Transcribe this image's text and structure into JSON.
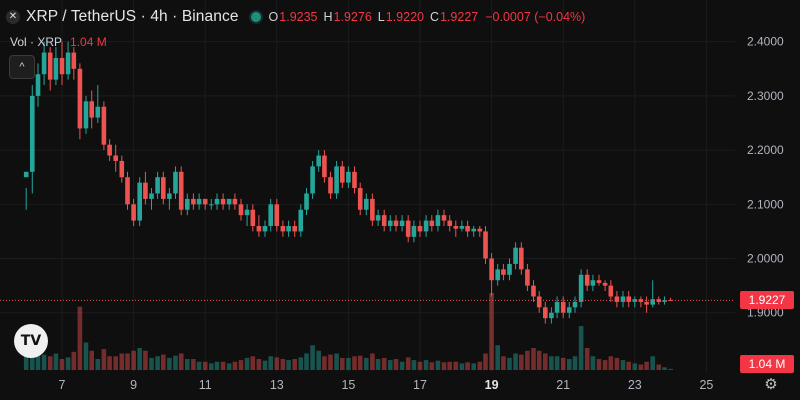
{
  "header": {
    "symbol_icon": "xrp-icon",
    "title": "XRP / TetherUS · 4h · Binance",
    "status": "market-open-dot",
    "ohlc": {
      "o_label": "O",
      "o_value": "1.9235",
      "h_label": "H",
      "h_value": "1.9276",
      "l_label": "L",
      "l_value": "1.9220",
      "c_label": "C",
      "c_value": "1.9227",
      "change": "−0.0007 (−0.04%)"
    }
  },
  "volume_legend": {
    "label": "Vol · XRP",
    "value": "1.04 M"
  },
  "price_axis": {
    "ticks": [
      "2.4000",
      "2.3000",
      "2.2000",
      "2.1000",
      "2.0000",
      "1.9000"
    ],
    "last_price_label": "1.9227",
    "volume_label": "1.04 M"
  },
  "time_axis": {
    "ticks": [
      "7",
      "9",
      "11",
      "13",
      "15",
      "17",
      "19",
      "21",
      "23",
      "25"
    ],
    "bold": [
      "19"
    ]
  },
  "colors": {
    "up": "#26a69a",
    "down": "#ef5350",
    "background": "#0f0f0f",
    "text": "#d1d4dc"
  },
  "icons": {
    "collapse": "chevron-up-icon",
    "logo": "tradingview-logo",
    "settings": "gear-icon"
  },
  "chart_data": {
    "type": "candlestick",
    "ylim": [
      1.87,
      2.44
    ],
    "y_tick_values": [
      2.4,
      2.3,
      2.2,
      2.1,
      2.0,
      1.9
    ],
    "x_tick_values": [
      7,
      9,
      11,
      13,
      15,
      17,
      19,
      21,
      23,
      25
    ],
    "last_price": 1.9227,
    "candles": [
      [
        6.0,
        2.15,
        2.16,
        2.13,
        2.09,
        0.5
      ],
      [
        6.17,
        2.16,
        2.3,
        2.32,
        2.12,
        0.6
      ],
      [
        6.33,
        2.3,
        2.34,
        2.36,
        2.28,
        0.35
      ],
      [
        6.5,
        2.34,
        2.38,
        2.4,
        2.32,
        0.28
      ],
      [
        6.67,
        2.38,
        2.33,
        2.39,
        2.31,
        0.25
      ],
      [
        6.83,
        2.33,
        2.37,
        2.39,
        2.32,
        0.3
      ],
      [
        7.0,
        2.37,
        2.34,
        2.4,
        2.32,
        0.2
      ],
      [
        7.17,
        2.34,
        2.38,
        2.4,
        2.33,
        0.23
      ],
      [
        7.33,
        2.38,
        2.35,
        2.39,
        2.33,
        0.33
      ],
      [
        7.5,
        2.35,
        2.24,
        2.36,
        2.22,
        1.15
      ],
      [
        7.67,
        2.24,
        2.29,
        2.3,
        2.23,
        0.5
      ],
      [
        7.83,
        2.29,
        2.26,
        2.31,
        2.24,
        0.35
      ],
      [
        8.0,
        2.26,
        2.28,
        2.32,
        2.25,
        0.2
      ],
      [
        8.17,
        2.28,
        2.21,
        2.29,
        2.2,
        0.38
      ],
      [
        8.33,
        2.21,
        2.19,
        2.22,
        2.18,
        0.25
      ],
      [
        8.5,
        2.19,
        2.18,
        2.21,
        2.16,
        0.25
      ],
      [
        8.67,
        2.18,
        2.15,
        2.19,
        2.14,
        0.3
      ],
      [
        8.83,
        2.15,
        2.1,
        2.16,
        2.09,
        0.3
      ],
      [
        9.0,
        2.1,
        2.07,
        2.11,
        2.06,
        0.35
      ],
      [
        9.17,
        2.07,
        2.14,
        2.15,
        2.06,
        0.4
      ],
      [
        9.33,
        2.14,
        2.11,
        2.16,
        2.1,
        0.35
      ],
      [
        9.5,
        2.11,
        2.12,
        2.13,
        2.09,
        0.22
      ],
      [
        9.67,
        2.12,
        2.15,
        2.16,
        2.11,
        0.25
      ],
      [
        9.83,
        2.15,
        2.11,
        2.16,
        2.1,
        0.28
      ],
      [
        10.0,
        2.11,
        2.12,
        2.13,
        2.09,
        0.22
      ],
      [
        10.17,
        2.12,
        2.16,
        2.17,
        2.11,
        0.26
      ],
      [
        10.33,
        2.16,
        2.09,
        2.17,
        2.08,
        0.3
      ],
      [
        10.5,
        2.09,
        2.11,
        2.12,
        2.08,
        0.2
      ],
      [
        10.67,
        2.11,
        2.1,
        2.12,
        2.09,
        0.2
      ],
      [
        10.83,
        2.1,
        2.11,
        2.12,
        2.09,
        0.15
      ],
      [
        11.0,
        2.11,
        2.1,
        2.11,
        2.09,
        0.15
      ],
      [
        11.17,
        2.1,
        2.1,
        2.11,
        2.09,
        0.12
      ],
      [
        11.33,
        2.1,
        2.11,
        2.12,
        2.09,
        0.15
      ],
      [
        11.5,
        2.11,
        2.1,
        2.12,
        2.09,
        0.15
      ],
      [
        11.67,
        2.1,
        2.11,
        2.11,
        2.09,
        0.12
      ],
      [
        11.83,
        2.11,
        2.1,
        2.12,
        2.09,
        0.15
      ],
      [
        12.0,
        2.1,
        2.08,
        2.11,
        2.07,
        0.18
      ],
      [
        12.17,
        2.08,
        2.09,
        2.1,
        2.06,
        0.22
      ],
      [
        12.33,
        2.09,
        2.06,
        2.1,
        2.05,
        0.25
      ],
      [
        12.5,
        2.06,
        2.05,
        2.08,
        2.04,
        0.2
      ],
      [
        12.67,
        2.05,
        2.06,
        2.07,
        2.04,
        0.17
      ],
      [
        12.83,
        2.06,
        2.1,
        2.11,
        2.05,
        0.25
      ],
      [
        13.0,
        2.1,
        2.06,
        2.11,
        2.05,
        0.23
      ],
      [
        13.17,
        2.06,
        2.05,
        2.07,
        2.04,
        0.2
      ],
      [
        13.33,
        2.05,
        2.06,
        2.07,
        2.04,
        0.18
      ],
      [
        13.5,
        2.06,
        2.05,
        2.07,
        2.04,
        0.2
      ],
      [
        13.67,
        2.05,
        2.09,
        2.1,
        2.04,
        0.23
      ],
      [
        13.83,
        2.09,
        2.12,
        2.13,
        2.08,
        0.3
      ],
      [
        14.0,
        2.12,
        2.17,
        2.18,
        2.11,
        0.45
      ],
      [
        14.17,
        2.17,
        2.19,
        2.2,
        2.16,
        0.35
      ],
      [
        14.33,
        2.19,
        2.15,
        2.2,
        2.14,
        0.25
      ],
      [
        14.5,
        2.15,
        2.12,
        2.16,
        2.11,
        0.28
      ],
      [
        14.67,
        2.12,
        2.17,
        2.18,
        2.11,
        0.3
      ],
      [
        14.83,
        2.17,
        2.14,
        2.18,
        2.13,
        0.22
      ],
      [
        15.0,
        2.14,
        2.16,
        2.17,
        2.13,
        0.22
      ],
      [
        15.17,
        2.16,
        2.13,
        2.17,
        2.12,
        0.25
      ],
      [
        15.33,
        2.13,
        2.09,
        2.14,
        2.08,
        0.26
      ],
      [
        15.5,
        2.09,
        2.11,
        2.12,
        2.08,
        0.22
      ],
      [
        15.67,
        2.11,
        2.07,
        2.12,
        2.06,
        0.3
      ],
      [
        15.83,
        2.07,
        2.08,
        2.09,
        2.06,
        0.2
      ],
      [
        16.0,
        2.08,
        2.06,
        2.09,
        2.05,
        0.22
      ],
      [
        16.17,
        2.06,
        2.07,
        2.08,
        2.05,
        0.18
      ],
      [
        16.33,
        2.07,
        2.06,
        2.08,
        2.05,
        0.2
      ],
      [
        16.5,
        2.06,
        2.07,
        2.08,
        2.05,
        0.15
      ],
      [
        16.67,
        2.07,
        2.04,
        2.08,
        2.03,
        0.23
      ],
      [
        16.83,
        2.04,
        2.06,
        2.07,
        2.03,
        0.18
      ],
      [
        17.0,
        2.06,
        2.05,
        2.07,
        2.04,
        0.15
      ],
      [
        17.17,
        2.05,
        2.07,
        2.08,
        2.04,
        0.18
      ],
      [
        17.33,
        2.07,
        2.06,
        2.08,
        2.05,
        0.14
      ],
      [
        17.5,
        2.06,
        2.08,
        2.09,
        2.05,
        0.17
      ],
      [
        17.67,
        2.08,
        2.07,
        2.09,
        2.06,
        0.14
      ],
      [
        17.83,
        2.07,
        2.06,
        2.08,
        2.05,
        0.15
      ],
      [
        18.0,
        2.06,
        2.055,
        2.07,
        2.04,
        0.15
      ],
      [
        18.17,
        2.055,
        2.06,
        2.07,
        2.05,
        0.12
      ],
      [
        18.33,
        2.06,
        2.05,
        2.07,
        2.04,
        0.14
      ],
      [
        18.5,
        2.05,
        2.055,
        2.06,
        2.04,
        0.12
      ],
      [
        18.67,
        2.055,
        2.05,
        2.06,
        2.04,
        0.15
      ],
      [
        18.83,
        2.05,
        2.0,
        2.06,
        1.99,
        0.3
      ],
      [
        19.0,
        2.0,
        1.96,
        2.01,
        1.93,
        1.4
      ],
      [
        19.17,
        1.96,
        1.98,
        1.99,
        1.95,
        0.45
      ],
      [
        19.33,
        1.98,
        1.97,
        1.99,
        1.96,
        0.25
      ],
      [
        19.5,
        1.97,
        1.99,
        2.0,
        1.96,
        0.22
      ],
      [
        19.67,
        1.99,
        2.02,
        2.03,
        1.98,
        0.3
      ],
      [
        19.83,
        2.02,
        1.98,
        2.03,
        1.97,
        0.28
      ],
      [
        20.0,
        1.98,
        1.95,
        1.99,
        1.94,
        0.35
      ],
      [
        20.17,
        1.95,
        1.93,
        1.96,
        1.92,
        0.4
      ],
      [
        20.33,
        1.93,
        1.91,
        1.94,
        1.9,
        0.35
      ],
      [
        20.5,
        1.91,
        1.89,
        1.92,
        1.88,
        0.3
      ],
      [
        20.67,
        1.89,
        1.9,
        1.91,
        1.88,
        0.25
      ],
      [
        20.83,
        1.9,
        1.92,
        1.93,
        1.89,
        0.25
      ],
      [
        21.0,
        1.92,
        1.9,
        1.93,
        1.89,
        0.22
      ],
      [
        21.17,
        1.9,
        1.91,
        1.92,
        1.89,
        0.2
      ],
      [
        21.33,
        1.91,
        1.92,
        1.93,
        1.9,
        0.25
      ],
      [
        21.5,
        1.92,
        1.97,
        1.98,
        1.91,
        0.8
      ],
      [
        21.67,
        1.97,
        1.95,
        1.98,
        1.94,
        0.4
      ],
      [
        21.83,
        1.95,
        1.96,
        1.97,
        1.94,
        0.25
      ],
      [
        22.0,
        1.96,
        1.955,
        1.97,
        1.95,
        0.2
      ],
      [
        22.17,
        1.955,
        1.95,
        1.96,
        1.94,
        0.18
      ],
      [
        22.33,
        1.95,
        1.93,
        1.96,
        1.92,
        0.25
      ],
      [
        22.5,
        1.93,
        1.92,
        1.94,
        1.91,
        0.22
      ],
      [
        22.67,
        1.92,
        1.93,
        1.94,
        1.91,
        0.18
      ],
      [
        22.83,
        1.93,
        1.92,
        1.94,
        1.91,
        0.15
      ],
      [
        23.0,
        1.92,
        1.925,
        1.93,
        1.91,
        0.12
      ],
      [
        23.17,
        1.925,
        1.92,
        1.93,
        1.91,
        0.1
      ],
      [
        23.33,
        1.92,
        1.915,
        1.93,
        1.9,
        0.15
      ],
      [
        23.5,
        1.915,
        1.925,
        1.96,
        1.91,
        0.25
      ],
      [
        23.67,
        1.925,
        1.92,
        1.93,
        1.915,
        0.1
      ],
      [
        23.83,
        1.92,
        1.9227,
        1.93,
        1.915,
        0.05
      ],
      [
        24.0,
        1.9235,
        1.9227,
        1.9276,
        1.922,
        0.02
      ]
    ]
  }
}
